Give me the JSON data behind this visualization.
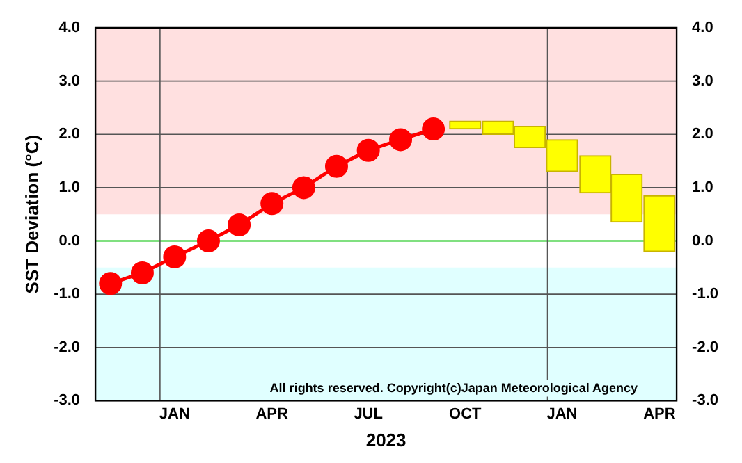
{
  "chart_data": {
    "type": "line",
    "ylabel": "SST Deviation (°C)",
    "xlabel": "2023",
    "xlim": [
      "2022-11-01",
      "2024-05-01"
    ],
    "xticks": [
      {
        "value": "2023-01-15",
        "label": "JAN"
      },
      {
        "value": "2023-04-15",
        "label": "APR"
      },
      {
        "value": "2023-07-15",
        "label": "JUL"
      },
      {
        "value": "2023-10-15",
        "label": "OCT"
      },
      {
        "value": "2024-01-15",
        "label": "JAN"
      },
      {
        "value": "2024-04-15",
        "label": "APR"
      }
    ],
    "ylim": [
      -3,
      4
    ],
    "yticks": [
      {
        "value": -3,
        "label": "-3.0"
      },
      {
        "value": -2,
        "label": "-2.0"
      },
      {
        "value": -1,
        "label": "-1.0"
      },
      {
        "value": 0,
        "label": "0.0"
      },
      {
        "value": 1,
        "label": "1.0"
      },
      {
        "value": 2,
        "label": "2.0"
      },
      {
        "value": 3,
        "label": "3.0"
      },
      {
        "value": 4,
        "label": "4.0"
      }
    ],
    "y2lim": [
      -3,
      4
    ],
    "y2ticks": [
      {
        "value": -3,
        "label": "-3.0"
      },
      {
        "value": -2,
        "label": "-2.0"
      },
      {
        "value": -1,
        "label": "-1.0"
      },
      {
        "value": 0,
        "label": "0.0"
      },
      {
        "value": 1,
        "label": "1.0"
      },
      {
        "value": 2,
        "label": "2.0"
      },
      {
        "value": 3,
        "label": "3.0"
      },
      {
        "value": 4,
        "label": "4.0"
      }
    ],
    "grid": "y",
    "legend": false,
    "series": [
      {
        "color": "#ff0000",
        "marker": "circle",
        "x": [
          "2022-11-15",
          "2022-12-15",
          "2023-01-15",
          "2023-02-15",
          "2023-03-15",
          "2023-04-15",
          "2023-05-15",
          "2023-06-15",
          "2023-07-15",
          "2023-08-15",
          "2023-09-15"
        ],
        "values": [
          -0.8,
          -0.6,
          -0.3,
          0.0,
          0.3,
          0.7,
          1.0,
          1.4,
          1.7,
          1.9,
          2.1
        ]
      },
      {
        "type": "bar",
        "color": "#ffff00",
        "x": [
          "2023-10-15",
          "2023-11-15",
          "2023-12-15",
          "2024-01-15",
          "2024-02-15",
          "2024-03-15",
          "2024-04-15"
        ],
        "base": [
          2.1,
          2.0,
          1.75,
          1.3,
          0.9,
          0.35,
          -0.2
        ],
        "values": [
          0.15,
          0.25,
          0.4,
          0.6,
          0.7,
          0.9,
          1.05
        ]
      }
    ],
    "bands": [
      {
        "axis": "y",
        "from": 0.5,
        "to": 4,
        "color": "#ffe0e0"
      },
      {
        "axis": "y",
        "from": -3,
        "to": -0.5,
        "color": "#e0ffff"
      }
    ],
    "ref_lines": [
      {
        "axis": "y",
        "value": 0,
        "color": "#80e080"
      },
      {
        "axis": "x",
        "value": "2023-01-01",
        "color": "#555555"
      },
      {
        "axis": "x",
        "value": "2024-01-01",
        "color": "#555555"
      }
    ],
    "annotations": [
      "All rights reserved. Copyright(c)Japan Meteorological Agency"
    ]
  }
}
